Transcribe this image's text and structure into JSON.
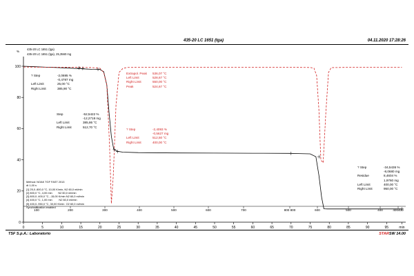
{
  "header": {
    "title": "435-20 LC 1651 (tga)",
    "datetime": "04.11.2020 17:28:26",
    "y_unit": "%",
    "sample_line1": "435-20 LC 1651 (tga)",
    "sample_line2": "435-20 LC 1651 (tga), 25,3560 mg"
  },
  "footer": {
    "company": "TSF S.p.A.: Laboratorio",
    "software_brand": "STAR",
    "software_version": "SW 14.00"
  },
  "annotations": [
    {
      "id": "step1",
      "color": "#000000",
      "lines": [
        [
          "? Step",
          "-2,0695 %"
        ],
        [
          "",
          "-0,4787 mg"
        ],
        [
          "Left Limit",
          "25,00 °C"
        ],
        [
          "Right Limit",
          "385,90 °C"
        ]
      ]
    },
    {
      "id": "step2",
      "color": "#000000",
      "lines": [
        [
          "Step",
          "-52,5422 %"
        ],
        [
          "",
          "-12,2718 mg"
        ],
        [
          "Left Limit",
          "385,86 °C"
        ],
        [
          "Right Limit",
          "512,70 °C"
        ]
      ]
    },
    {
      "id": "extrapol",
      "color": "#d21f1f",
      "lines": [
        [
          "Extrapol. Peak",
          "536,07 °C"
        ],
        [
          "Left Limit",
          "528,67 °C"
        ],
        [
          "Right Limit",
          "550,00 °C"
        ],
        [
          "Peak",
          "524,67 °C"
        ]
      ]
    },
    {
      "id": "step3",
      "color": "#d21f1f",
      "lines": [
        [
          "? Step",
          "-2,4093 %"
        ],
        [
          "",
          "-0,5627 mg"
        ],
        [
          "Left Limit",
          "512,50 °C"
        ],
        [
          "Right Limit",
          "400,00 °C"
        ]
      ]
    },
    {
      "id": "step4",
      "color": "#000000",
      "lines": [
        [
          "? Step",
          "-34,5436 %"
        ],
        [
          "",
          "-8,0680 mg"
        ],
        [
          "Residue",
          "8,4604 %"
        ],
        [
          "",
          "1,9760 mg"
        ],
        [
          "Left Limit",
          "400,00 °C"
        ],
        [
          "Right Limit",
          "950,00 °C"
        ]
      ]
    }
  ],
  "method": {
    "lines": [
      "Method: NOAK TGF FAST 2013",
      "dt 1,00 s",
      "[1] 25,0..800,0 °C, 10,00 K/min, N2 60,0 ml/min",
      "[2] 800,0 °C, 4,00 min        N2 60,0 ml/min",
      "[3] 800,0..400,0 °C, -15,00 K/min N2 60,0 ml/min",
      "[4] 400,0 °C, 1,00 min         N2 60,0 ml/min",
      "[5] 400,0..950,0 °C, 30,00 K/min  O2 60,0 ml/min",
      "Synchronization enabled"
    ]
  },
  "chart_data": {
    "type": "line",
    "title": "435-20 LC 1651 (tga)",
    "ylabel": "%",
    "xlabel": "min",
    "ylim": [
      0,
      100
    ],
    "xlim": [
      0,
      100
    ],
    "grid": false,
    "y_ticks": [
      "0",
      "20",
      "40",
      "60",
      "80",
      "100"
    ],
    "y_tick_values": [
      0,
      20,
      40,
      60,
      80,
      100
    ],
    "x_time_ticks": [
      "0",
      "5",
      "10",
      "15",
      "20",
      "25",
      "30",
      "35",
      "40",
      "45",
      "50",
      "55",
      "60",
      "65",
      "70",
      "75",
      "80",
      "85",
      "90",
      "95",
      "min"
    ],
    "x_time_values": [
      0,
      5,
      10,
      15,
      20,
      25,
      30,
      35,
      40,
      45,
      50,
      55,
      60,
      65,
      70,
      75,
      80,
      85,
      90,
      95,
      99
    ],
    "x_temp_ticks": [
      "100",
      "200",
      "300",
      "400",
      "500",
      "600",
      "700",
      "800 800",
      "600",
      "500",
      "400",
      "400400",
      "500",
      "600",
      "700",
      "800",
      "900",
      "°C"
    ],
    "x_temp_positions": [
      3.75,
      13.75,
      23.75,
      33.75,
      43.75,
      53.75,
      63.75,
      72.5,
      79.2,
      86.8,
      94.3,
      97.6,
      4.0,
      5.1,
      6.2,
      7.2,
      8.3,
      9.4
    ],
    "series": [
      {
        "name": "",
        "color": "#000000",
        "dash": "none",
        "x": [
          0,
          3,
          6,
          9,
          12,
          15,
          18,
          20,
          21,
          21.8,
          22.4,
          23.0,
          23.6,
          24.5,
          26,
          30,
          40,
          50,
          60,
          70,
          72,
          75,
          76.5,
          77.3,
          78.0,
          78.6,
          79.5,
          80.5,
          85,
          90,
          95,
          99
        ],
        "y": [
          100,
          99.7,
          99.4,
          99.1,
          98.8,
          98.4,
          98.0,
          97.9,
          96.5,
          88,
          70,
          55,
          47,
          45.5,
          44.9,
          44.6,
          44.4,
          44.3,
          44.2,
          44.1,
          44.0,
          43.8,
          42,
          30,
          16,
          8.6,
          8.5,
          8.5,
          8.5,
          8.5,
          8.5,
          8.5
        ]
      },
      {
        "name": "",
        "color": "#d21f1f",
        "dash": "3,2",
        "x": [
          0,
          5,
          10,
          15,
          18,
          20,
          21,
          21.8,
          22.5,
          23.0,
          23.5,
          24.2,
          25,
          26,
          27,
          30,
          35,
          40,
          50,
          60,
          70,
          75,
          76,
          76.7,
          77.3,
          77.8,
          78.4,
          79.1,
          79.8,
          80.5,
          85,
          90,
          95,
          99
        ],
        "y": [
          99.5,
          99.4,
          99.4,
          99.3,
          99.1,
          98.7,
          96,
          88,
          50,
          12,
          30,
          75,
          96,
          98.6,
          99.2,
          99.3,
          99.3,
          99.3,
          99.3,
          99.3,
          99.3,
          99.2,
          98.8,
          94,
          72,
          40,
          38,
          70,
          96,
          99.1,
          99.3,
          99.3,
          99.3,
          99.3
        ]
      }
    ],
    "markers": [
      {
        "x": 14.5,
        "y": 98.9
      },
      {
        "x": 15.5,
        "y": 98.6
      },
      {
        "x": 19.5,
        "y": 98.0
      },
      {
        "x": 23.8,
        "y": 46.5
      },
      {
        "x": 24.6,
        "y": 45.3
      },
      {
        "x": 70,
        "y": 44.1
      },
      {
        "x": 77.3,
        "y": 42.0
      },
      {
        "x": 99,
        "y": 8.5
      }
    ]
  }
}
